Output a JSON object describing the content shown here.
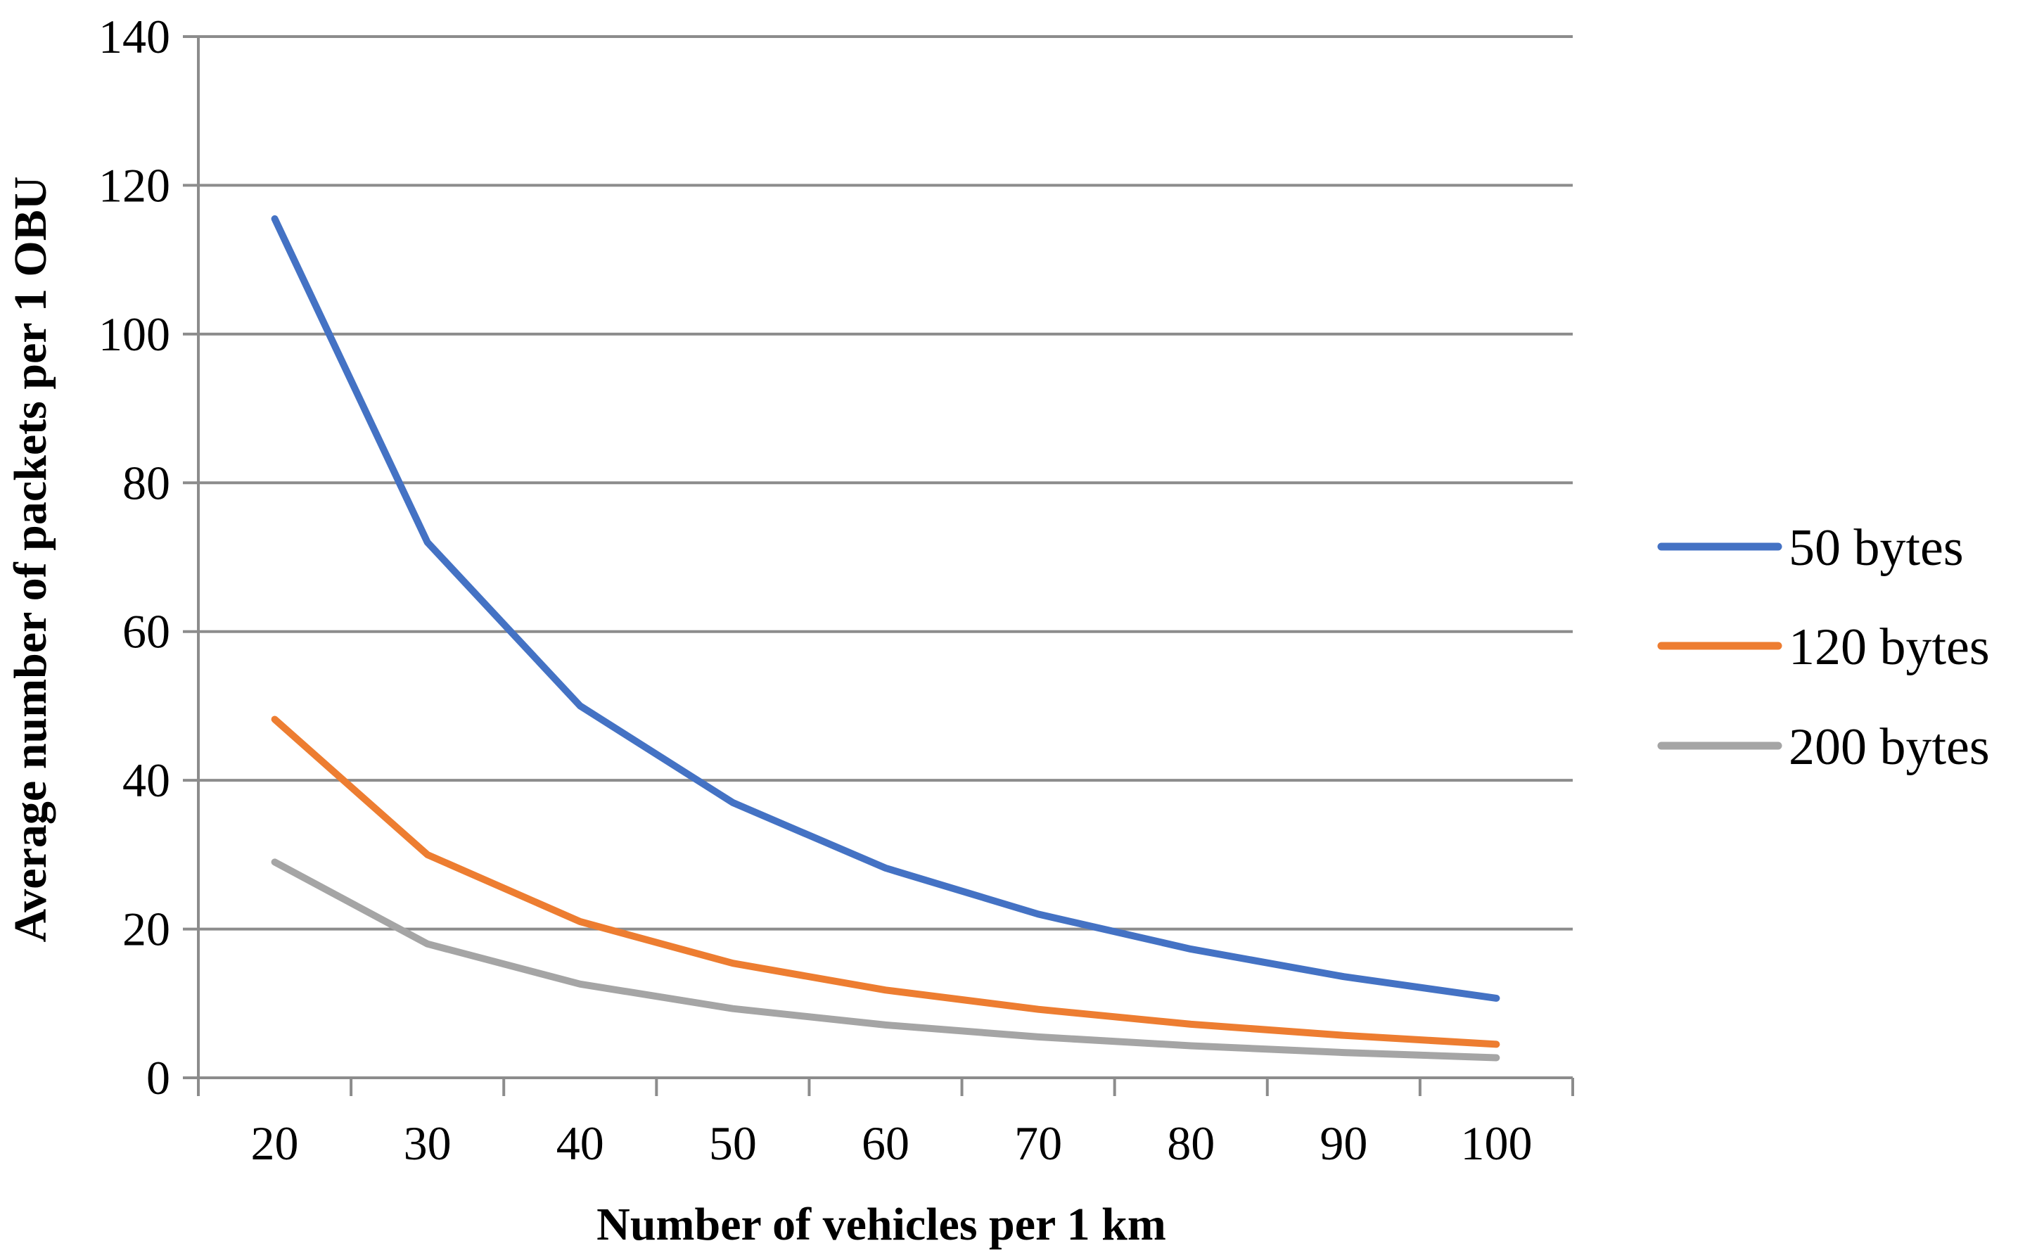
{
  "chart_data": {
    "type": "line",
    "title": "",
    "xlabel": "Number of vehicles per 1 km",
    "ylabel": "Average number of packets per 1 OBU",
    "categories": [
      "20",
      "30",
      "40",
      "50",
      "60",
      "70",
      "80",
      "90",
      "100"
    ],
    "ylim": [
      0,
      140
    ],
    "yticks": [
      "0",
      "20",
      "40",
      "60",
      "80",
      "100",
      "120",
      "140"
    ],
    "grid": "horizontal",
    "legend_position": "right",
    "series": [
      {
        "name": "50 bytes",
        "color": "#4472C4",
        "values": [
          115.5,
          72,
          50,
          37,
          28.2,
          22,
          17.3,
          13.6,
          10.7
        ]
      },
      {
        "name": "120 bytes",
        "color": "#ED7D31",
        "values": [
          48.2,
          30,
          21,
          15.4,
          11.8,
          9.2,
          7.2,
          5.7,
          4.5
        ]
      },
      {
        "name": "200 bytes",
        "color": "#A5A5A5",
        "values": [
          29,
          18,
          12.6,
          9.3,
          7.1,
          5.5,
          4.3,
          3.4,
          2.7
        ]
      }
    ]
  }
}
